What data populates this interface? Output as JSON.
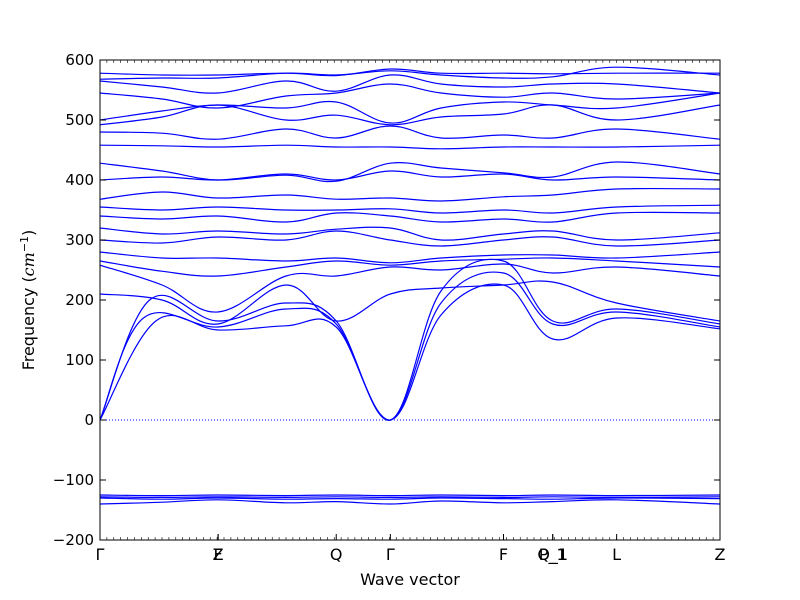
{
  "chart_data": {
    "type": "line",
    "title": "",
    "xlabel": "Wave vector",
    "ylabel": "Frequency (cm⁻¹)",
    "ylabel_prefix": "Frequency (",
    "ylabel_unit": "cm",
    "ylabel_exp": "−1",
    "ylabel_suffix": ")",
    "ylim": [
      -200,
      600
    ],
    "xlim": [
      0,
      1
    ],
    "grid": false,
    "yticks": [
      -200,
      -100,
      0,
      100,
      200,
      300,
      400,
      500,
      600
    ],
    "ytick_labels": [
      "−200",
      "−100",
      "0",
      "100",
      "200",
      "300",
      "400",
      "500",
      "600"
    ],
    "special_points": [
      {
        "label": "Γ",
        "x": 0.0
      },
      {
        "label": "Z",
        "x": 0.1905
      },
      {
        "label": "F",
        "x": 0.1905
      },
      {
        "label": "Q",
        "x": 0.381
      },
      {
        "label": "Γ",
        "x": 0.4683
      },
      {
        "label": "F",
        "x": 0.6508
      },
      {
        "label": "P_1",
        "x": 0.7302
      },
      {
        "label": "Q_1",
        "x": 0.7302
      },
      {
        "label": "L",
        "x": 0.8333
      },
      {
        "label": "Z",
        "x": 1.0
      }
    ],
    "zero_line": {
      "y": 0,
      "style": "dotted"
    },
    "line_color": "#0000ff",
    "series": [
      {
        "values": [
          [
            0,
            0
          ],
          [
            0.08,
            200
          ],
          [
            0.19,
            165
          ],
          [
            0.3,
            195
          ],
          [
            0.381,
            165
          ],
          [
            0.4683,
            0
          ],
          [
            0.55,
            215
          ],
          [
            0.6508,
            265
          ],
          [
            0.7302,
            165
          ],
          [
            0.8333,
            185
          ],
          [
            1.0,
            160
          ]
        ]
      },
      {
        "values": [
          [
            0,
            0
          ],
          [
            0.07,
            170
          ],
          [
            0.19,
            155
          ],
          [
            0.3,
            185
          ],
          [
            0.381,
            160
          ],
          [
            0.4683,
            0
          ],
          [
            0.55,
            195
          ],
          [
            0.6508,
            245
          ],
          [
            0.7302,
            160
          ],
          [
            0.8333,
            180
          ],
          [
            1.0,
            155
          ]
        ]
      },
      {
        "values": [
          [
            0,
            0
          ],
          [
            0.09,
            165
          ],
          [
            0.19,
            150
          ],
          [
            0.3,
            157
          ],
          [
            0.381,
            155
          ],
          [
            0.4683,
            0
          ],
          [
            0.55,
            175
          ],
          [
            0.6508,
            225
          ],
          [
            0.7302,
            135
          ],
          [
            0.8333,
            170
          ],
          [
            1.0,
            152
          ]
        ]
      },
      {
        "values": [
          [
            0,
            210
          ],
          [
            0.1,
            200
          ],
          [
            0.19,
            160
          ],
          [
            0.3,
            225
          ],
          [
            0.381,
            165
          ],
          [
            0.4683,
            210
          ],
          [
            0.55,
            220
          ],
          [
            0.6508,
            225
          ],
          [
            0.7302,
            230
          ],
          [
            0.8333,
            195
          ],
          [
            1.0,
            165
          ]
        ]
      },
      {
        "values": [
          [
            0,
            258
          ],
          [
            0.1,
            225
          ],
          [
            0.19,
            180
          ],
          [
            0.3,
            240
          ],
          [
            0.381,
            240
          ],
          [
            0.4683,
            255
          ],
          [
            0.55,
            250
          ],
          [
            0.6508,
            260
          ],
          [
            0.7302,
            245
          ],
          [
            0.8333,
            255
          ],
          [
            1.0,
            240
          ]
        ]
      },
      {
        "values": [
          [
            0,
            265
          ],
          [
            0.1,
            248
          ],
          [
            0.19,
            240
          ],
          [
            0.3,
            255
          ],
          [
            0.381,
            265
          ],
          [
            0.4683,
            258
          ],
          [
            0.55,
            265
          ],
          [
            0.6508,
            268
          ],
          [
            0.7302,
            270
          ],
          [
            0.8333,
            265
          ],
          [
            1.0,
            255
          ]
        ]
      },
      {
        "values": [
          [
            0,
            280
          ],
          [
            0.1,
            270
          ],
          [
            0.19,
            270
          ],
          [
            0.3,
            265
          ],
          [
            0.381,
            270
          ],
          [
            0.4683,
            262
          ],
          [
            0.55,
            270
          ],
          [
            0.6508,
            275
          ],
          [
            0.7302,
            275
          ],
          [
            0.8333,
            270
          ],
          [
            1.0,
            280
          ]
        ]
      },
      {
        "values": [
          [
            0,
            300
          ],
          [
            0.1,
            295
          ],
          [
            0.19,
            305
          ],
          [
            0.3,
            300
          ],
          [
            0.381,
            315
          ],
          [
            0.4683,
            300
          ],
          [
            0.55,
            290
          ],
          [
            0.6508,
            300
          ],
          [
            0.7302,
            305
          ],
          [
            0.8333,
            290
          ],
          [
            1.0,
            300
          ]
        ]
      },
      {
        "values": [
          [
            0,
            320
          ],
          [
            0.1,
            310
          ],
          [
            0.19,
            315
          ],
          [
            0.3,
            310
          ],
          [
            0.381,
            318
          ],
          [
            0.4683,
            320
          ],
          [
            0.55,
            300
          ],
          [
            0.6508,
            310
          ],
          [
            0.7302,
            315
          ],
          [
            0.8333,
            300
          ],
          [
            1.0,
            312
          ]
        ]
      },
      {
        "values": [
          [
            0,
            340
          ],
          [
            0.1,
            335
          ],
          [
            0.19,
            340
          ],
          [
            0.3,
            330
          ],
          [
            0.381,
            345
          ],
          [
            0.4683,
            340
          ],
          [
            0.55,
            330
          ],
          [
            0.6508,
            335
          ],
          [
            0.7302,
            330
          ],
          [
            0.8333,
            345
          ],
          [
            1.0,
            345
          ]
        ]
      },
      {
        "values": [
          [
            0,
            355
          ],
          [
            0.1,
            350
          ],
          [
            0.19,
            355
          ],
          [
            0.3,
            350
          ],
          [
            0.381,
            350
          ],
          [
            0.4683,
            352
          ],
          [
            0.55,
            345
          ],
          [
            0.6508,
            350
          ],
          [
            0.7302,
            345
          ],
          [
            0.8333,
            355
          ],
          [
            1.0,
            358
          ]
        ]
      },
      {
        "values": [
          [
            0,
            368
          ],
          [
            0.1,
            380
          ],
          [
            0.19,
            370
          ],
          [
            0.3,
            375
          ],
          [
            0.381,
            368
          ],
          [
            0.4683,
            370
          ],
          [
            0.55,
            365
          ],
          [
            0.6508,
            372
          ],
          [
            0.7302,
            375
          ],
          [
            0.8333,
            385
          ],
          [
            1.0,
            385
          ]
        ]
      },
      {
        "values": [
          [
            0,
            400
          ],
          [
            0.1,
            405
          ],
          [
            0.19,
            400
          ],
          [
            0.3,
            410
          ],
          [
            0.381,
            400
          ],
          [
            0.4683,
            415
          ],
          [
            0.55,
            405
          ],
          [
            0.6508,
            410
          ],
          [
            0.7302,
            400
          ],
          [
            0.8333,
            405
          ],
          [
            1.0,
            400
          ]
        ]
      },
      {
        "values": [
          [
            0,
            428
          ],
          [
            0.1,
            415
          ],
          [
            0.19,
            400
          ],
          [
            0.3,
            408
          ],
          [
            0.381,
            398
          ],
          [
            0.4683,
            428
          ],
          [
            0.55,
            420
          ],
          [
            0.6508,
            412
          ],
          [
            0.7302,
            405
          ],
          [
            0.8333,
            430
          ],
          [
            1.0,
            410
          ]
        ]
      },
      {
        "values": [
          [
            0,
            458
          ],
          [
            0.1,
            457
          ],
          [
            0.19,
            455
          ],
          [
            0.3,
            458
          ],
          [
            0.381,
            455
          ],
          [
            0.4683,
            455
          ],
          [
            0.55,
            452
          ],
          [
            0.6508,
            455
          ],
          [
            0.7302,
            455
          ],
          [
            0.8333,
            455
          ],
          [
            1.0,
            458
          ]
        ]
      },
      {
        "values": [
          [
            0,
            480
          ],
          [
            0.1,
            478
          ],
          [
            0.19,
            468
          ],
          [
            0.3,
            485
          ],
          [
            0.381,
            470
          ],
          [
            0.4683,
            490
          ],
          [
            0.55,
            470
          ],
          [
            0.6508,
            475
          ],
          [
            0.7302,
            470
          ],
          [
            0.8333,
            485
          ],
          [
            1.0,
            468
          ]
        ]
      },
      {
        "values": [
          [
            0,
            492
          ],
          [
            0.1,
            505
          ],
          [
            0.19,
            525
          ],
          [
            0.3,
            500
          ],
          [
            0.381,
            508
          ],
          [
            0.4683,
            492
          ],
          [
            0.55,
            505
          ],
          [
            0.6508,
            510
          ],
          [
            0.7302,
            525
          ],
          [
            0.8333,
            500
          ],
          [
            1.0,
            525
          ]
        ]
      },
      {
        "values": [
          [
            0,
            500
          ],
          [
            0.1,
            515
          ],
          [
            0.19,
            525
          ],
          [
            0.3,
            520
          ],
          [
            0.381,
            530
          ],
          [
            0.4683,
            495
          ],
          [
            0.55,
            520
          ],
          [
            0.6508,
            530
          ],
          [
            0.7302,
            525
          ],
          [
            0.8333,
            520
          ],
          [
            1.0,
            545
          ]
        ]
      },
      {
        "values": [
          [
            0,
            545
          ],
          [
            0.1,
            535
          ],
          [
            0.19,
            520
          ],
          [
            0.3,
            540
          ],
          [
            0.381,
            545
          ],
          [
            0.4683,
            560
          ],
          [
            0.55,
            545
          ],
          [
            0.6508,
            538
          ],
          [
            0.7302,
            545
          ],
          [
            0.8333,
            535
          ],
          [
            1.0,
            545
          ]
        ]
      },
      {
        "values": [
          [
            0,
            565
          ],
          [
            0.1,
            555
          ],
          [
            0.19,
            545
          ],
          [
            0.3,
            565
          ],
          [
            0.381,
            548
          ],
          [
            0.4683,
            575
          ],
          [
            0.55,
            560
          ],
          [
            0.6508,
            555
          ],
          [
            0.7302,
            560
          ],
          [
            0.8333,
            560
          ],
          [
            1.0,
            545
          ]
        ]
      },
      {
        "values": [
          [
            0,
            568
          ],
          [
            0.1,
            570
          ],
          [
            0.19,
            570
          ],
          [
            0.3,
            578
          ],
          [
            0.381,
            575
          ],
          [
            0.4683,
            582
          ],
          [
            0.55,
            575
          ],
          [
            0.6508,
            570
          ],
          [
            0.7302,
            572
          ],
          [
            0.8333,
            588
          ],
          [
            1.0,
            575
          ]
        ]
      },
      {
        "values": [
          [
            0,
            578
          ],
          [
            0.1,
            575
          ],
          [
            0.19,
            575
          ],
          [
            0.3,
            578
          ],
          [
            0.381,
            574
          ],
          [
            0.4683,
            585
          ],
          [
            0.55,
            578
          ],
          [
            0.6508,
            578
          ],
          [
            0.7302,
            577
          ],
          [
            0.8333,
            578
          ],
          [
            1.0,
            578
          ]
        ]
      },
      {
        "values": [
          [
            0,
            -125
          ],
          [
            0.1,
            -126
          ],
          [
            0.19,
            -125
          ],
          [
            0.3,
            -126
          ],
          [
            0.381,
            -125
          ],
          [
            0.4683,
            -126
          ],
          [
            0.55,
            -125
          ],
          [
            0.6508,
            -126
          ],
          [
            0.7302,
            -125
          ],
          [
            0.8333,
            -126
          ],
          [
            1.0,
            -125
          ]
        ]
      },
      {
        "values": [
          [
            0,
            -128
          ],
          [
            0.1,
            -129
          ],
          [
            0.19,
            -128
          ],
          [
            0.3,
            -129
          ],
          [
            0.381,
            -128
          ],
          [
            0.4683,
            -129
          ],
          [
            0.55,
            -128
          ],
          [
            0.6508,
            -129
          ],
          [
            0.7302,
            -128
          ],
          [
            0.8333,
            -129
          ],
          [
            1.0,
            -128
          ]
        ]
      },
      {
        "values": [
          [
            0,
            -130
          ],
          [
            0.1,
            -132
          ],
          [
            0.19,
            -130
          ],
          [
            0.3,
            -132
          ],
          [
            0.381,
            -131
          ],
          [
            0.4683,
            -132
          ],
          [
            0.55,
            -130
          ],
          [
            0.6508,
            -131
          ],
          [
            0.7302,
            -132
          ],
          [
            0.8333,
            -130
          ],
          [
            1.0,
            -131
          ]
        ]
      },
      {
        "values": [
          [
            0,
            -140
          ],
          [
            0.1,
            -137
          ],
          [
            0.19,
            -133
          ],
          [
            0.3,
            -138
          ],
          [
            0.381,
            -136
          ],
          [
            0.4683,
            -140
          ],
          [
            0.55,
            -135
          ],
          [
            0.6508,
            -138
          ],
          [
            0.7302,
            -136
          ],
          [
            0.8333,
            -133
          ],
          [
            1.0,
            -140
          ]
        ]
      }
    ]
  }
}
